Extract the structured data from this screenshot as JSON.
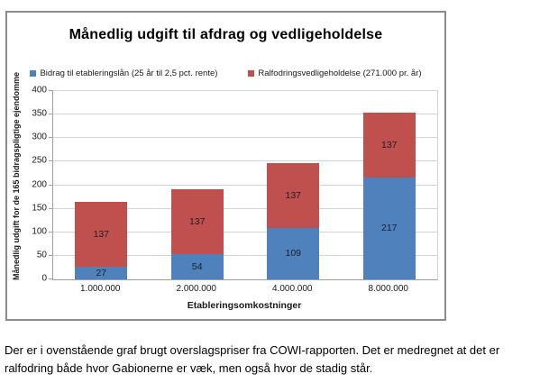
{
  "chart": {
    "title": "Månedlig udgift til afdrag og vedligeholdelse",
    "xlabel": "Etableringsomkostninger",
    "ylabel": "Månedlig udgift for de 165 bidragspligtige ejendomme"
  },
  "chart_data": {
    "type": "bar",
    "stacked": true,
    "title": "Månedlig udgift til afdrag og vedligeholdelse",
    "xlabel": "Etableringsomkostninger",
    "ylabel": "Månedlig udgift for de 165 bidragspligtige ejendomme",
    "categories": [
      "1.000.000",
      "2.000.000",
      "4.000.000",
      "8.000.000"
    ],
    "series": [
      {
        "name": "Bidrag til etableringslån (25 år til 2,5 pct. rente)",
        "color": "#4f81bd",
        "values": [
          27,
          54,
          109,
          217
        ]
      },
      {
        "name": "Ralfodringsvedligeholdelse (271.000 pr. år)",
        "color": "#c0504d",
        "values": [
          137,
          137,
          137,
          137
        ]
      }
    ],
    "ylim": [
      0,
      400
    ],
    "ytick_step": 50,
    "grid": true,
    "legend_position": "top",
    "data_labels": true
  },
  "caption": "Der er i ovenstående graf brugt overslagspriser fra COWI-rapporten. Det er medregnet at det er ralfodring både hvor Gabionerne er væk, men også hvor de stadig står."
}
